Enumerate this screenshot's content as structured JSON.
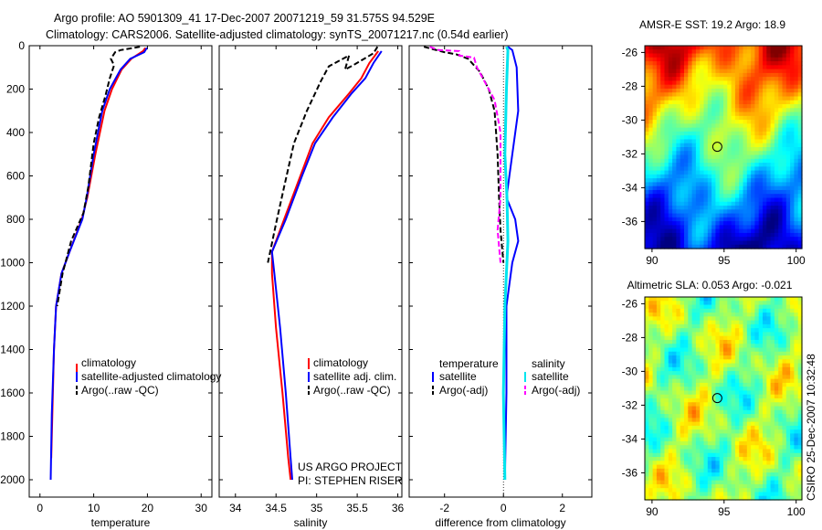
{
  "title_line1": "Argo profile: AO 5901309_41 17-Dec-2007 20071219_59 31.575S 94.529E",
  "title_line2": "Climatology: CARS2006. Satellite-adjusted climatology: synTS_20071217.nc (0.54d earlier)",
  "credit": "CSIRO 25-Dec-2007 10:32:48",
  "project_line1": "US ARGO PROJECT",
  "project_line2": "PI: STEPHEN RISER",
  "colors": {
    "climatology": "#ff0000",
    "satellite": "#0000ff",
    "argo": "#000000",
    "sat_sal": "#00e5ee",
    "argo_sal": "#ff00ff"
  },
  "chart_data": [
    {
      "type": "line",
      "id": "temperature",
      "xlabel": "temperature",
      "xlim": [
        -2,
        32
      ],
      "ylim": [
        0,
        2080
      ],
      "x_ticks": [
        0,
        10,
        20,
        30
      ],
      "y_ticks": [
        0,
        200,
        400,
        600,
        800,
        1000,
        1200,
        1400,
        1600,
        1800,
        2000
      ],
      "legend": [
        "climatology",
        "satellite-adjusted climatology",
        "Argo(..raw -QC)"
      ],
      "series": [
        {
          "name": "climatology",
          "style": "solid",
          "points": [
            [
              19.6,
              10
            ],
            [
              19.2,
              25
            ],
            [
              17,
              60
            ],
            [
              15.2,
              110
            ],
            [
              13.4,
              200
            ],
            [
              12.0,
              300
            ],
            [
              10.3,
              500
            ],
            [
              8.8,
              700
            ],
            [
              7.8,
              800
            ],
            [
              5.5,
              950
            ],
            [
              4.0,
              1050
            ],
            [
              3.0,
              1200
            ],
            [
              2.6,
              1400
            ],
            [
              2.3,
              1700
            ],
            [
              2.1,
              1900
            ]
          ]
        },
        {
          "name": "satellite",
          "style": "solid",
          "points": [
            [
              19.9,
              10
            ],
            [
              19.4,
              30
            ],
            [
              16.8,
              60
            ],
            [
              15.0,
              110
            ],
            [
              13.0,
              200
            ],
            [
              11.6,
              300
            ],
            [
              10.0,
              500
            ],
            [
              8.7,
              700
            ],
            [
              7.9,
              800
            ],
            [
              5.5,
              950
            ],
            [
              4.0,
              1050
            ],
            [
              3.0,
              1200
            ],
            [
              2.6,
              1400
            ],
            [
              2.2,
              1700
            ],
            [
              2.0,
              2000
            ]
          ]
        },
        {
          "name": "argo",
          "style": "dash",
          "points": [
            [
              18.6,
              5
            ],
            [
              15.0,
              20
            ],
            [
              14.0,
              30
            ],
            [
              13.2,
              60
            ],
            [
              13.8,
              90
            ],
            [
              13.0,
              150
            ],
            [
              12.2,
              230
            ],
            [
              11.0,
              330
            ],
            [
              10.0,
              450
            ],
            [
              9.0,
              650
            ],
            [
              8.1,
              770
            ],
            [
              5.8,
              900
            ],
            [
              4.2,
              1050
            ],
            [
              3.2,
              1200
            ]
          ]
        }
      ]
    },
    {
      "type": "line",
      "id": "salinity",
      "xlabel": "salinity",
      "xlim": [
        33.8,
        36.05
      ],
      "ylim": [
        0,
        2080
      ],
      "x_ticks": [
        34,
        34.5,
        35,
        35.5,
        36
      ],
      "legend": [
        "climatology",
        "satellite adj. clim.",
        "Argo(..raw -QC)"
      ],
      "series": [
        {
          "name": "climatology",
          "style": "solid",
          "points": [
            [
              35.76,
              25
            ],
            [
              35.65,
              80
            ],
            [
              35.55,
              150
            ],
            [
              35.4,
              220
            ],
            [
              35.15,
              330
            ],
            [
              34.95,
              450
            ],
            [
              34.8,
              600
            ],
            [
              34.6,
              800
            ],
            [
              34.45,
              950
            ],
            [
              34.45,
              1050
            ],
            [
              34.5,
              1300
            ],
            [
              34.58,
              1600
            ],
            [
              34.65,
              1900
            ],
            [
              34.68,
              2000
            ]
          ]
        },
        {
          "name": "satellite",
          "style": "solid",
          "points": [
            [
              35.8,
              25
            ],
            [
              35.7,
              80
            ],
            [
              35.6,
              150
            ],
            [
              35.43,
              220
            ],
            [
              35.2,
              330
            ],
            [
              34.98,
              450
            ],
            [
              34.82,
              600
            ],
            [
              34.62,
              800
            ],
            [
              34.45,
              950
            ],
            [
              34.48,
              1050
            ],
            [
              34.55,
              1300
            ],
            [
              34.62,
              1600
            ],
            [
              34.68,
              1900
            ],
            [
              34.7,
              2000
            ]
          ]
        },
        {
          "name": "argo",
          "style": "dash",
          "points": [
            [
              35.75,
              5
            ],
            [
              35.7,
              35
            ],
            [
              35.45,
              90
            ],
            [
              35.35,
              110
            ],
            [
              35.4,
              45
            ],
            [
              35.15,
              95
            ],
            [
              35.05,
              165
            ],
            [
              34.88,
              300
            ],
            [
              34.72,
              450
            ],
            [
              34.6,
              650
            ],
            [
              34.5,
              820
            ],
            [
              34.4,
              1000
            ]
          ]
        }
      ]
    },
    {
      "type": "line",
      "id": "difference",
      "xlabel": "difference from climatology",
      "xlim": [
        -3.2,
        3.0
      ],
      "ylim": [
        0,
        2080
      ],
      "x_ticks": [
        -2,
        0,
        2
      ],
      "legend_left_title": "temperature",
      "legend_right_title": "salinity",
      "legend": [
        "satellite",
        "Argo(-adj)",
        "satellite",
        "Argo(-adj)"
      ],
      "series": [
        {
          "name": "temp_satellite",
          "style": "solid",
          "points": [
            [
              0.15,
              5
            ],
            [
              0.3,
              20
            ],
            [
              0.45,
              100
            ],
            [
              0.5,
              300
            ],
            [
              0.2,
              600
            ],
            [
              0.1,
              700
            ],
            [
              0.4,
              800
            ],
            [
              0.5,
              900
            ],
            [
              0.3,
              1000
            ],
            [
              0.1,
              1200
            ],
            [
              0.1,
              1600
            ],
            [
              0.05,
              2000
            ]
          ]
        },
        {
          "name": "sal_satellite",
          "style": "solid",
          "points": [
            [
              0.1,
              5
            ],
            [
              0.15,
              20
            ],
            [
              0.1,
              200
            ],
            [
              0.05,
              500
            ],
            [
              0.12,
              700
            ],
            [
              0.15,
              900
            ],
            [
              0.05,
              1200
            ],
            [
              0.0,
              1600
            ],
            [
              0.05,
              2000
            ]
          ]
        },
        {
          "name": "temp_argo",
          "style": "dash",
          "points": [
            [
              -2.7,
              5
            ],
            [
              -2.0,
              30
            ],
            [
              -1.6,
              40
            ],
            [
              -1.2,
              60
            ],
            [
              -0.8,
              120
            ],
            [
              -0.5,
              200
            ],
            [
              -0.3,
              300
            ],
            [
              -0.2,
              500
            ],
            [
              -0.15,
              700
            ],
            [
              -0.1,
              850
            ],
            [
              0.0,
              1000
            ]
          ]
        },
        {
          "name": "sal_argo",
          "style": "dash",
          "points": [
            [
              -2.5,
              5
            ],
            [
              -2.2,
              20
            ],
            [
              -1.5,
              25
            ],
            [
              -1.5,
              45
            ],
            [
              -1.0,
              55
            ],
            [
              -0.9,
              100
            ],
            [
              -0.7,
              150
            ],
            [
              -0.3,
              250
            ],
            [
              -0.1,
              400
            ],
            [
              -0.1,
              700
            ],
            [
              -0.2,
              850
            ],
            [
              -0.1,
              1000
            ]
          ]
        }
      ]
    },
    {
      "type": "heatmap",
      "id": "sst_map",
      "title": "AMSR-E SST: 19.2 Argo: 18.9",
      "xlim": [
        89.5,
        100.4
      ],
      "ylim": [
        -37.6,
        -25.6
      ],
      "x_ticks": [
        90,
        95,
        100
      ],
      "y_ticks": [
        -26,
        -28,
        -30,
        -32,
        -34,
        -36
      ],
      "argo_position": [
        94.53,
        -31.58
      ]
    },
    {
      "type": "heatmap",
      "id": "sla_map",
      "title": "Altimetric SLA: 0.053 Argo: -0.021",
      "xlim": [
        89.5,
        100.4
      ],
      "ylim": [
        -37.6,
        -25.6
      ],
      "x_ticks": [
        90,
        95,
        100
      ],
      "y_ticks": [
        -26,
        -28,
        -30,
        -32,
        -34,
        -36
      ],
      "argo_position": [
        94.53,
        -31.58
      ]
    }
  ]
}
